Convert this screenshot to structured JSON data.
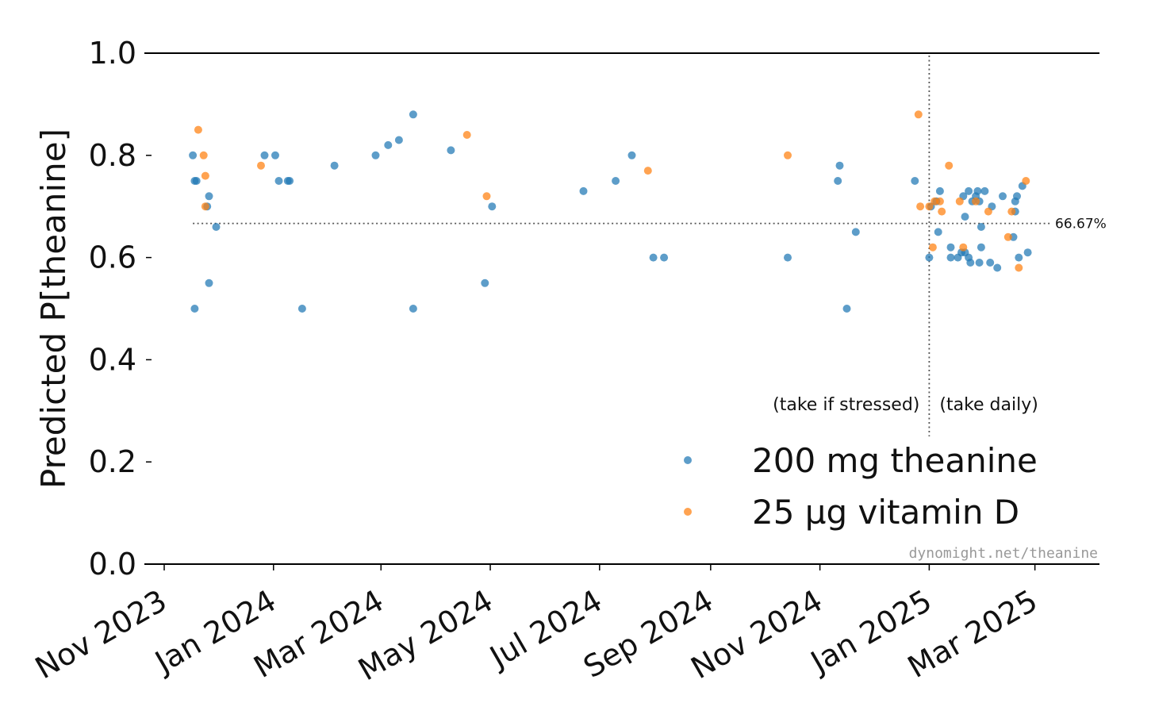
{
  "chart_data": {
    "type": "scatter",
    "title": "",
    "xlabel": "",
    "ylabel": "Predicted P[theanine]",
    "ylim": [
      0,
      1
    ],
    "xlim": [
      "2023-10-23",
      "2025-03-20"
    ],
    "y_ticks": [
      "0.0",
      "0.2",
      "0.4",
      "0.6",
      "0.8",
      "1.0"
    ],
    "x_ticks": [
      {
        "date": "2023-11-01",
        "label": "Nov 2023"
      },
      {
        "date": "2024-01-01",
        "label": "Jan 2024"
      },
      {
        "date": "2024-03-01",
        "label": "Mar 2024"
      },
      {
        "date": "2024-05-01",
        "label": "May 2024"
      },
      {
        "date": "2024-07-01",
        "label": "Jul 2024"
      },
      {
        "date": "2024-09-01",
        "label": "Sep 2024"
      },
      {
        "date": "2024-11-01",
        "label": "Nov 2024"
      },
      {
        "date": "2025-01-01",
        "label": "Jan 2025"
      },
      {
        "date": "2025-03-01",
        "label": "Mar 2025"
      }
    ],
    "grid": false,
    "legend_position": "lower-right",
    "reference_line": {
      "y": 0.6667,
      "label": "66.67%",
      "style": "dotted"
    },
    "vertical_line": {
      "date": "2025-01-01",
      "style": "dotted"
    },
    "annotations": {
      "left": "(take if stressed)",
      "right": "(take daily)"
    },
    "watermark": "dynomight.net/theanine",
    "series": [
      {
        "name": "200 mg theanine",
        "color": "#1f77b4",
        "points": [
          [
            "2023-11-17",
            0.8
          ],
          [
            "2023-11-18",
            0.75
          ],
          [
            "2023-11-18",
            0.5
          ],
          [
            "2023-11-19",
            0.75
          ],
          [
            "2023-11-25",
            0.7
          ],
          [
            "2023-11-26",
            0.72
          ],
          [
            "2023-11-26",
            0.55
          ],
          [
            "2023-11-30",
            0.66
          ],
          [
            "2023-12-27",
            0.8
          ],
          [
            "2024-01-02",
            0.8
          ],
          [
            "2024-01-04",
            0.75
          ],
          [
            "2024-01-09",
            0.75
          ],
          [
            "2024-01-10",
            0.75
          ],
          [
            "2024-01-17",
            0.5
          ],
          [
            "2024-02-04",
            0.78
          ],
          [
            "2024-02-27",
            0.8
          ],
          [
            "2024-03-05",
            0.82
          ],
          [
            "2024-03-11",
            0.83
          ],
          [
            "2024-03-19",
            0.88
          ],
          [
            "2024-03-19",
            0.5
          ],
          [
            "2024-04-09",
            0.81
          ],
          [
            "2024-04-28",
            0.55
          ],
          [
            "2024-05-02",
            0.7
          ],
          [
            "2024-06-22",
            0.73
          ],
          [
            "2024-07-10",
            0.75
          ],
          [
            "2024-07-19",
            0.8
          ],
          [
            "2024-07-31",
            0.6
          ],
          [
            "2024-08-06",
            0.6
          ],
          [
            "2024-10-14",
            0.6
          ],
          [
            "2024-11-11",
            0.75
          ],
          [
            "2024-11-12",
            0.78
          ],
          [
            "2024-11-16",
            0.5
          ],
          [
            "2024-11-21",
            0.65
          ],
          [
            "2024-12-24",
            0.75
          ],
          [
            "2025-01-01",
            0.6
          ],
          [
            "2025-01-02",
            0.7
          ],
          [
            "2025-01-05",
            0.71
          ],
          [
            "2025-01-06",
            0.65
          ],
          [
            "2025-01-07",
            0.73
          ],
          [
            "2025-01-13",
            0.62
          ],
          [
            "2025-01-13",
            0.6
          ],
          [
            "2025-01-17",
            0.6
          ],
          [
            "2025-01-19",
            0.61
          ],
          [
            "2025-01-20",
            0.72
          ],
          [
            "2025-01-21",
            0.68
          ],
          [
            "2025-01-21",
            0.61
          ],
          [
            "2025-01-23",
            0.73
          ],
          [
            "2025-01-23",
            0.6
          ],
          [
            "2025-01-24",
            0.59
          ],
          [
            "2025-01-25",
            0.71
          ],
          [
            "2025-01-27",
            0.72
          ],
          [
            "2025-01-28",
            0.73
          ],
          [
            "2025-01-29",
            0.59
          ],
          [
            "2025-01-29",
            0.71
          ],
          [
            "2025-01-30",
            0.62
          ],
          [
            "2025-01-30",
            0.66
          ],
          [
            "2025-02-01",
            0.73
          ],
          [
            "2025-02-04",
            0.59
          ],
          [
            "2025-02-05",
            0.7
          ],
          [
            "2025-02-08",
            0.58
          ],
          [
            "2025-02-11",
            0.72
          ],
          [
            "2025-02-17",
            0.64
          ],
          [
            "2025-02-18",
            0.69
          ],
          [
            "2025-02-18",
            0.71
          ],
          [
            "2025-02-19",
            0.72
          ],
          [
            "2025-02-20",
            0.6
          ],
          [
            "2025-02-22",
            0.74
          ],
          [
            "2025-02-25",
            0.61
          ]
        ]
      },
      {
        "name": "25 µg vitamin D",
        "color": "#ff7f0e",
        "points": [
          [
            "2023-11-20",
            0.85
          ],
          [
            "2023-11-23",
            0.8
          ],
          [
            "2023-11-24",
            0.76
          ],
          [
            "2023-11-24",
            0.7
          ],
          [
            "2023-12-25",
            0.78
          ],
          [
            "2024-04-18",
            0.84
          ],
          [
            "2024-04-29",
            0.72
          ],
          [
            "2024-07-28",
            0.77
          ],
          [
            "2024-10-14",
            0.8
          ],
          [
            "2024-12-26",
            0.88
          ],
          [
            "2024-12-27",
            0.7
          ],
          [
            "2025-01-01",
            0.7
          ],
          [
            "2025-01-03",
            0.62
          ],
          [
            "2025-01-04",
            0.71
          ],
          [
            "2025-01-07",
            0.71
          ],
          [
            "2025-01-08",
            0.69
          ],
          [
            "2025-01-12",
            0.78
          ],
          [
            "2025-01-18",
            0.71
          ],
          [
            "2025-01-20",
            0.62
          ],
          [
            "2025-01-27",
            0.71
          ],
          [
            "2025-02-03",
            0.69
          ],
          [
            "2025-02-14",
            0.64
          ],
          [
            "2025-02-16",
            0.69
          ],
          [
            "2025-02-20",
            0.58
          ],
          [
            "2025-02-24",
            0.75
          ]
        ]
      }
    ]
  }
}
